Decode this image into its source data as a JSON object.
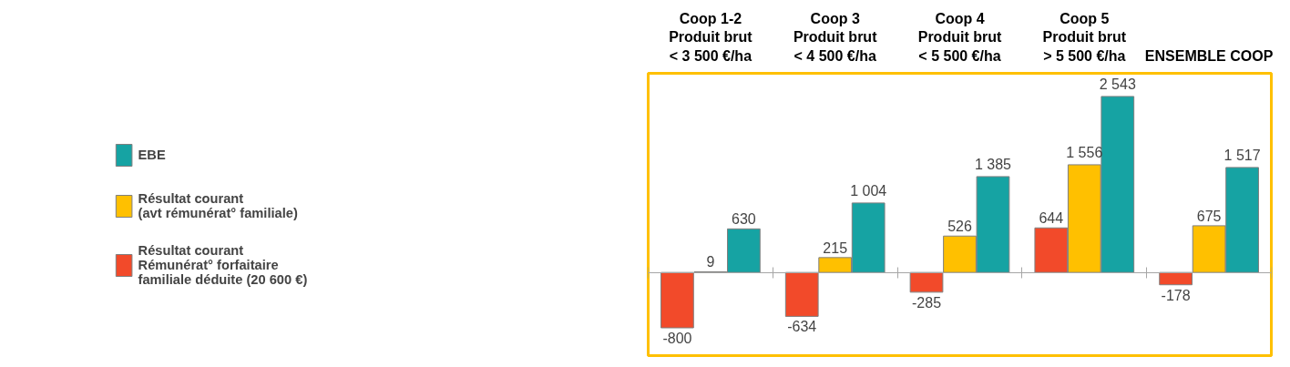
{
  "chart_data": {
    "type": "bar",
    "categories": [
      "Coop 1-2\nProduit brut\n< 3 500 €/ha",
      "Coop 3\nProduit brut\n< 4 500 €/ha",
      "Coop 4\nProduit brut\n< 5 500 €/ha",
      "Coop 5\nProduit brut\n> 5 500 €/ha",
      "ENSEMBLE COOP"
    ],
    "series": [
      {
        "name": "Résultat courant\nRémunérat° forfaitaire\nfamiliale déduite (20 600 €)",
        "color": "#f24a2a",
        "values": [
          -800,
          -634,
          -285,
          644,
          -178
        ],
        "value_labels": [
          "-800",
          "-634",
          "-285",
          "644",
          "-178"
        ]
      },
      {
        "name": "Résultat courant\n(avt rémunérat° familiale)",
        "color": "#ffc000",
        "values": [
          9,
          215,
          526,
          1556,
          675
        ],
        "value_labels": [
          "9",
          "215",
          "526",
          "1 556",
          "675"
        ]
      },
      {
        "name": "EBE",
        "color": "#16a3a3",
        "values": [
          630,
          1004,
          1385,
          2543,
          1517
        ],
        "value_labels": [
          "630",
          "1 004",
          "1 385",
          "2 543",
          "1 517"
        ]
      }
    ],
    "legend": "left",
    "grid": false
  }
}
